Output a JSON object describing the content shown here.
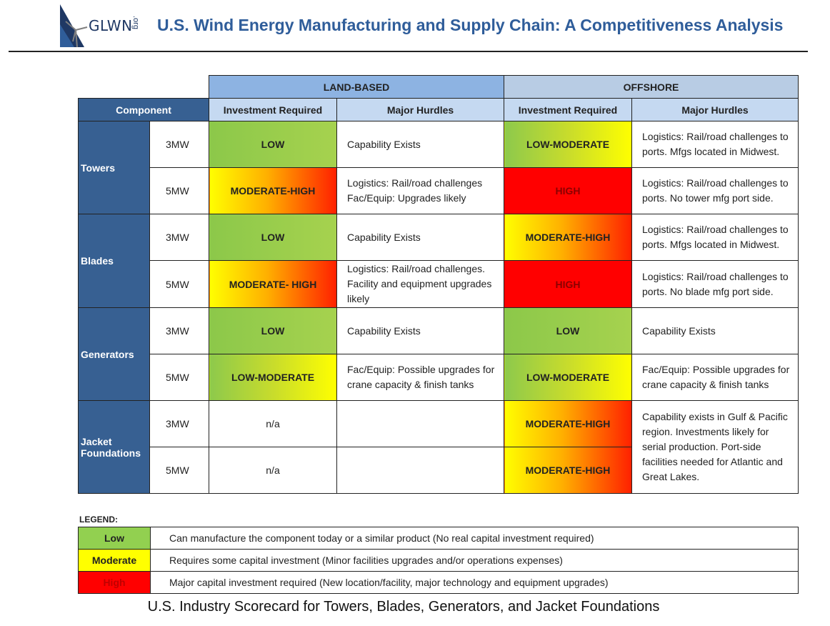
{
  "header": {
    "logo_text": "GLWN",
    "logo_suffix": ".org",
    "title": "U.S. Wind Energy Manufacturing and Supply Chain: A Competitiveness Analysis"
  },
  "table": {
    "group_land": "LAND-BASED",
    "group_offshore": "OFFSHORE",
    "col_component": "Component",
    "col_invest": "Investment Required",
    "col_hurdles": "Major Hurdles",
    "rows": [
      {
        "component": "Towers",
        "mw": "3MW",
        "land_level": "LOW",
        "land_hurdle": "Capability Exists",
        "off_level": "LOW-MODERATE",
        "off_hurdle": "Logistics: Rail/road challenges to ports.  Mfgs located in Midwest."
      },
      {
        "mw": "5MW",
        "land_level": "MODERATE-HIGH",
        "land_hurdle": "Logistics: Rail/road challenges Fac/Equip: Upgrades likely",
        "off_level": "HIGH",
        "off_hurdle": "Logistics: Rail/road challenges to ports. No tower mfg port side."
      },
      {
        "component": "Blades",
        "mw": "3MW",
        "land_level": "LOW",
        "land_hurdle": "Capability Exists",
        "off_level": "MODERATE-HIGH",
        "off_hurdle": "Logistics: Rail/road challenges to ports.  Mfgs located in Midwest."
      },
      {
        "mw": "5MW",
        "land_level": "MODERATE- HIGH",
        "land_hurdle": "Logistics: Rail/road challenges. Facility and equipment upgrades likely",
        "off_level": "HIGH",
        "off_hurdle": "Logistics: Rail/road challenges to ports.  No blade mfg port side."
      },
      {
        "component": "Generators",
        "mw": "3MW",
        "land_level": "LOW",
        "land_hurdle": "Capability Exists",
        "off_level": "LOW",
        "off_hurdle": "Capability Exists"
      },
      {
        "mw": "5MW",
        "land_level": "LOW-MODERATE",
        "land_hurdle": "Fac/Equip: Possible upgrades for crane capacity & finish tanks",
        "off_level": "LOW-MODERATE",
        "off_hurdle": "Fac/Equip: Possible upgrades for crane capacity & finish tanks"
      },
      {
        "component": "Jacket Foundations",
        "mw": "3MW",
        "land_level": "n/a",
        "land_hurdle": "",
        "off_level": "MODERATE-HIGH",
        "off_hurdle": "Capability exists in Gulf & Pacific region.  Investments likely for serial production. Port-side facilities needed for Atlantic and Great Lakes."
      },
      {
        "mw": "5MW",
        "land_level": "n/a",
        "land_hurdle": "",
        "off_level": "MODERATE-HIGH"
      }
    ]
  },
  "legend": {
    "label": "LEGEND:",
    "items": [
      {
        "key": "Low",
        "desc": "Can manufacture  the component today or a  similar product (No real capital investment required)"
      },
      {
        "key": "Moderate",
        "desc": "Requires  some capital investment (Minor facilities upgrades and/or operations expenses)"
      },
      {
        "key": "High",
        "desc": "Major capital investment required  (New location/facility, major technology and equipment upgrades)"
      }
    ]
  },
  "caption": "U.S. Industry Scorecard for Towers, Blades, Generators, and Jacket Foundations",
  "colors": {
    "low": "#92d050",
    "moderate": "#ffff00",
    "high": "#ff0000",
    "component_bg": "#376092",
    "land_header": "#8db3e2",
    "offshore_header": "#b8cce4"
  }
}
